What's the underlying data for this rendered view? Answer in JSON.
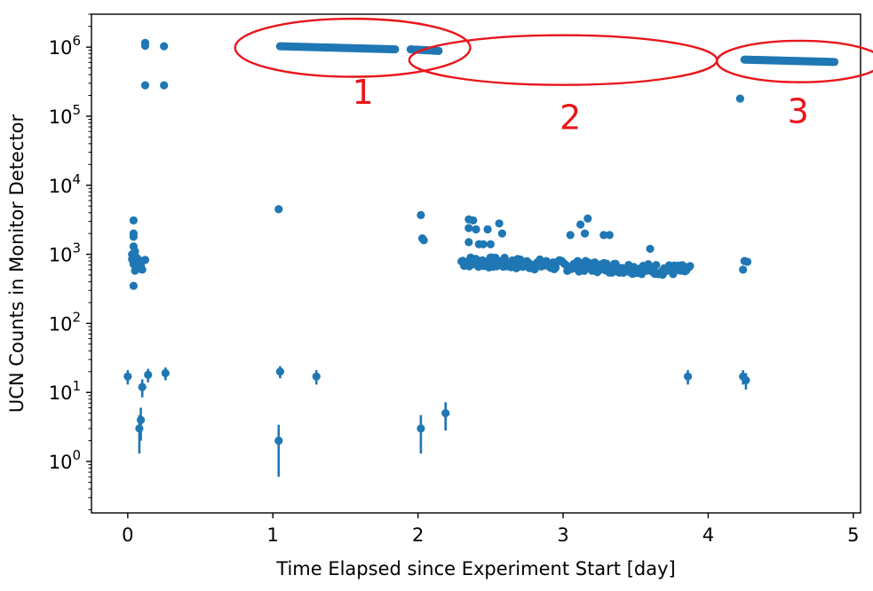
{
  "chart_data": {
    "type": "scatter",
    "title": "",
    "xlabel": "Time Elapsed since Experiment Start [day]",
    "ylabel": "UCN Counts in Monitor Detector",
    "xlim": [
      -0.25,
      5.05
    ],
    "ylim": [
      0.18,
      3000000
    ],
    "y_scale": "log",
    "grid": false,
    "legend": "none",
    "x_ticks": [
      {
        "value": 0,
        "label": "0"
      },
      {
        "value": 1,
        "label": "1"
      },
      {
        "value": 2,
        "label": "2"
      },
      {
        "value": 3,
        "label": "3"
      },
      {
        "value": 4,
        "label": "4"
      },
      {
        "value": 5,
        "label": "5"
      }
    ],
    "y_ticks": [
      {
        "value": 1,
        "base": "10",
        "exp": "0"
      },
      {
        "value": 10,
        "base": "10",
        "exp": "1"
      },
      {
        "value": 100,
        "base": "10",
        "exp": "2"
      },
      {
        "value": 1000,
        "base": "10",
        "exp": "3"
      },
      {
        "value": 10000,
        "base": "10",
        "exp": "4"
      },
      {
        "value": 100000,
        "base": "10",
        "exp": "5"
      },
      {
        "value": 1000000,
        "base": "10",
        "exp": "6"
      }
    ],
    "series_color": "#1f77b4",
    "annotation_color": "#e8161b",
    "points": [
      [
        0.12,
        1150000
      ],
      [
        0.12,
        1050000
      ],
      [
        0.25,
        1030000
      ],
      [
        0.12,
        280000
      ],
      [
        0.25,
        280000
      ],
      [
        0.04,
        3100
      ],
      [
        0.04,
        2000
      ],
      [
        0.04,
        1800
      ],
      [
        0.04,
        1300
      ],
      [
        0.05,
        1100
      ],
      [
        0.03,
        1000
      ],
      [
        0.06,
        900
      ],
      [
        0.03,
        850
      ],
      [
        0.08,
        820
      ],
      [
        0.1,
        800
      ],
      [
        0.12,
        830
      ],
      [
        0.05,
        780
      ],
      [
        0.07,
        750
      ],
      [
        0.04,
        720
      ],
      [
        0.09,
        700
      ],
      [
        0.06,
        650
      ],
      [
        0.08,
        620
      ],
      [
        0.1,
        600
      ],
      [
        0.05,
        580
      ],
      [
        0.04,
        350
      ],
      [
        1.04,
        4500
      ],
      [
        2.02,
        3700
      ],
      [
        2.03,
        1700
      ],
      [
        2.04,
        1600
      ],
      [
        2.35,
        3200
      ],
      [
        2.38,
        3100
      ],
      [
        2.35,
        2400
      ],
      [
        2.4,
        2300
      ],
      [
        2.48,
        2300
      ],
      [
        2.35,
        1500
      ],
      [
        2.42,
        1400
      ],
      [
        2.45,
        1400
      ],
      [
        2.5,
        1400
      ],
      [
        2.56,
        2800
      ],
      [
        2.58,
        2000
      ],
      [
        3.05,
        1900
      ],
      [
        3.12,
        2700
      ],
      [
        3.15,
        2000
      ],
      [
        3.17,
        3300
      ],
      [
        3.28,
        1900
      ],
      [
        3.32,
        1900
      ],
      [
        3.6,
        1200
      ],
      [
        4.22,
        180000
      ],
      [
        4.25,
        800
      ],
      [
        4.24,
        600
      ],
      [
        4.27,
        780
      ]
    ],
    "error_points": [
      {
        "x": 0.0,
        "y": 17,
        "lo": 13,
        "hi": 21
      },
      {
        "x": 0.14,
        "y": 18,
        "lo": 14,
        "hi": 22
      },
      {
        "x": 0.26,
        "y": 19,
        "lo": 15,
        "hi": 23
      },
      {
        "x": 0.1,
        "y": 12,
        "lo": 8.5,
        "hi": 15.5
      },
      {
        "x": 0.09,
        "y": 4,
        "lo": 2,
        "hi": 6
      },
      {
        "x": 0.08,
        "y": 3,
        "lo": 1.3,
        "hi": 4.7
      },
      {
        "x": 1.05,
        "y": 20,
        "lo": 16,
        "hi": 24
      },
      {
        "x": 1.3,
        "y": 17,
        "lo": 13,
        "hi": 21
      },
      {
        "x": 1.04,
        "y": 2,
        "lo": 0.6,
        "hi": 3.4
      },
      {
        "x": 2.02,
        "y": 3,
        "lo": 1.3,
        "hi": 4.7
      },
      {
        "x": 2.19,
        "y": 5,
        "lo": 2.8,
        "hi": 7.2
      },
      {
        "x": 3.86,
        "y": 17,
        "lo": 13,
        "hi": 21
      },
      {
        "x": 4.24,
        "y": 17,
        "lo": 13,
        "hi": 21
      },
      {
        "x": 4.26,
        "y": 15,
        "lo": 11,
        "hi": 19
      }
    ],
    "bands": [
      {
        "x0": 1.05,
        "x1": 1.85,
        "y0": 1030000,
        "y1": 930000,
        "gap": [
          1.85,
          1.95
        ],
        "x2": 2.15,
        "y2": 880000
      },
      {
        "x0": 2.3,
        "x1": 3.88,
        "y0": 790000,
        "y1": 580000,
        "noise": 0.08
      },
      {
        "x0": 4.25,
        "x1": 4.87,
        "y0": 660000,
        "y1": 610000
      }
    ],
    "band2_scale": 0.001,
    "annotations": [
      {
        "label": "1",
        "cx": 1.55,
        "cy": 980000,
        "rx": 0.81,
        "ry_decades": 0.42,
        "tx": 1.62,
        "ty": 150000
      },
      {
        "label": "2",
        "cx": 3.0,
        "cy": 650000,
        "rx": 1.06,
        "ry_decades": 0.36,
        "tx": 3.05,
        "ty": 65000
      },
      {
        "label": "3",
        "cx": 4.63,
        "cy": 620000,
        "rx": 0.57,
        "ry_decades": 0.3,
        "tx": 4.62,
        "ty": 80000
      }
    ]
  }
}
